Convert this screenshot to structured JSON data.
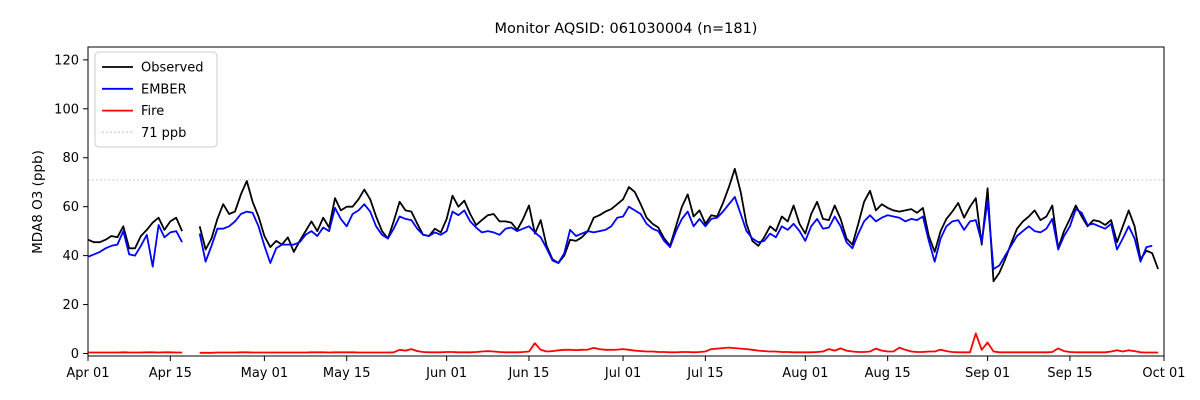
{
  "figure": {
    "title": "Monitor AQSID: 061030004 (n=181)",
    "background_color": "#ffffff"
  },
  "axes": {
    "ylabel": "MDA8 O3 (ppb)",
    "ytick_values": [
      0,
      20,
      40,
      60,
      80,
      100,
      120
    ],
    "xtick_labels": [
      "Apr 01",
      "Apr 15",
      "May 01",
      "May 15",
      "Jun 01",
      "Jun 15",
      "Jul 01",
      "Jul 15",
      "Aug 01",
      "Aug 15",
      "Sep 01",
      "Sep 15",
      "Oct 01"
    ],
    "xtick_day_index": [
      0,
      14,
      30,
      44,
      61,
      75,
      91,
      105,
      122,
      136,
      153,
      167,
      183
    ]
  },
  "legend": {
    "position": "upper left",
    "entries": [
      {
        "label": "Observed",
        "color": "#000000",
        "dash": "solid"
      },
      {
        "label": "EMBER",
        "color": "#0000ff",
        "dash": "solid"
      },
      {
        "label": "Fire",
        "color": "#ff0000",
        "dash": "solid"
      },
      {
        "label": "71 ppb",
        "color": "#c9c9c9",
        "dash": "dotted"
      }
    ]
  },
  "chart_data": {
    "type": "line",
    "title": "Monitor AQSID: 061030004 (n=181)",
    "xlabel": "",
    "ylabel": "MDA8 O3 (ppb)",
    "x_unit": "daily values, day index 0 = Apr 01, last point = Sep 30",
    "n_points": 181,
    "missing_days": [
      "Apr 18",
      "Apr 19"
    ],
    "grid": false,
    "legend_position": "upper left",
    "ylim": [
      0,
      124
    ],
    "xlim_days": 183,
    "ytick_values": [
      0,
      20,
      40,
      60,
      80,
      100,
      120
    ],
    "xtick_labels": [
      "Apr 01",
      "Apr 15",
      "May 01",
      "May 15",
      "Jun 01",
      "Jun 15",
      "Jul 01",
      "Jul 15",
      "Aug 01",
      "Aug 15",
      "Sep 01",
      "Sep 15",
      "Oct 01"
    ],
    "xtick_day_index": [
      0,
      14,
      30,
      44,
      61,
      75,
      91,
      105,
      122,
      136,
      153,
      167,
      183
    ],
    "reference_line": {
      "label": "71 ppb",
      "value": 71,
      "color": "#c9c9c9",
      "style": "dotted"
    },
    "series": [
      {
        "name": "Observed",
        "color": "#000000",
        "values": [
          46.5,
          45.5,
          45.5,
          46.5,
          48,
          47.5,
          52,
          43,
          43,
          48,
          50.5,
          53.5,
          55.5,
          50.5,
          54,
          55.5,
          50,
          null,
          null,
          52,
          42.5,
          47,
          55,
          61,
          57,
          58,
          65,
          70.5,
          62,
          56,
          48,
          43.5,
          46,
          44.5,
          47.5,
          41.5,
          46,
          50,
          54,
          50,
          55.5,
          51.5,
          63.5,
          58.5,
          60,
          60,
          63,
          67,
          63,
          56,
          50,
          47,
          54,
          62,
          58.5,
          58,
          53,
          48.5,
          48,
          51,
          49.5,
          55,
          64.5,
          60,
          62.5,
          57,
          52.5,
          54.5,
          56.5,
          57,
          54,
          54,
          53.5,
          50.5,
          55,
          60.5,
          49,
          54.5,
          44,
          38.5,
          37,
          40,
          46.5,
          46,
          47.5,
          50,
          55.5,
          56.5,
          58,
          59,
          61,
          63,
          68,
          66,
          61,
          55.5,
          53,
          51.5,
          47,
          44,
          52,
          60,
          65,
          56,
          58.5,
          53,
          56.5,
          56,
          61.5,
          68,
          75.5,
          66,
          53,
          46,
          44,
          47.5,
          52,
          50,
          56,
          54,
          60.5,
          53,
          49,
          57,
          62,
          55,
          54.5,
          60.5,
          55,
          47,
          44.5,
          53,
          62,
          66.5,
          58.5,
          61,
          59.5,
          58.5,
          58,
          58.5,
          59,
          57.5,
          59.5,
          48,
          41.5,
          50,
          55,
          58,
          61.5,
          55.5,
          60,
          63.5,
          44.5,
          67.5,
          29.5,
          33,
          38.5,
          45,
          51,
          54,
          56,
          58.5,
          54.5,
          56,
          60.5,
          43,
          50,
          55,
          60.5,
          56,
          52,
          54.5,
          54,
          52.5,
          54.5,
          45.5,
          52,
          58.5,
          52,
          38.5,
          42,
          41,
          34.5
        ]
      },
      {
        "name": "EMBER",
        "color": "#0000ff",
        "values": [
          39.5,
          40.5,
          41.5,
          43,
          44,
          44.5,
          50,
          40.5,
          40,
          44,
          48.5,
          35.5,
          52.5,
          47.5,
          49.5,
          50,
          45.5,
          null,
          null,
          49,
          37.5,
          44,
          51,
          51,
          52,
          54,
          57,
          58,
          57.5,
          52,
          44,
          37,
          43,
          44.5,
          44.5,
          44.5,
          45.5,
          48.5,
          50,
          48,
          51.5,
          50,
          59.5,
          55,
          52,
          57,
          58.5,
          61,
          58,
          52,
          48.5,
          47,
          51,
          56,
          55,
          54.5,
          51,
          48.5,
          48,
          49.5,
          48.5,
          50,
          58,
          56.5,
          58.5,
          54,
          51.5,
          49.5,
          50,
          49.5,
          48.5,
          51,
          51.5,
          50,
          51,
          52,
          49.5,
          47.5,
          43,
          38,
          37,
          41,
          50.5,
          48,
          49,
          50,
          49.5,
          50,
          50.5,
          52,
          55.5,
          56,
          60,
          58.5,
          57,
          53,
          51,
          50,
          46,
          43.5,
          50,
          55,
          58,
          52,
          55,
          52,
          55,
          55.5,
          58,
          61,
          64,
          57,
          50,
          47,
          45.5,
          46,
          49,
          47.5,
          52,
          50.5,
          53,
          50,
          46,
          52,
          55,
          51,
          51.5,
          56,
          52,
          45.5,
          43,
          49,
          54,
          56.5,
          54,
          55.5,
          56.5,
          56,
          55.5,
          54,
          55,
          54.5,
          56,
          46,
          37.5,
          47,
          52,
          54,
          54.5,
          50.5,
          54,
          54.5,
          45.5,
          62.5,
          34.5,
          36,
          40,
          44,
          48,
          50,
          52,
          50,
          49.5,
          51,
          55,
          42.5,
          48,
          52,
          59,
          57.5,
          52.5,
          53,
          52,
          51,
          53,
          42.5,
          47,
          52,
          47,
          37.5,
          43.5,
          44,
          null
        ]
      },
      {
        "name": "Fire",
        "color": "#ff0000",
        "values": [
          0.4,
          0.4,
          0.4,
          0.4,
          0.4,
          0.4,
          0.5,
          0.4,
          0.4,
          0.4,
          0.5,
          0.5,
          0.4,
          0.5,
          0.5,
          0.4,
          0.4,
          null,
          null,
          0.3,
          0.3,
          0.3,
          0.4,
          0.4,
          0.4,
          0.4,
          0.5,
          0.5,
          0.4,
          0.4,
          0.4,
          0.4,
          0.4,
          0.4,
          0.4,
          0.4,
          0.4,
          0.4,
          0.5,
          0.5,
          0.5,
          0.4,
          0.5,
          0.5,
          0.5,
          0.5,
          0.4,
          0.4,
          0.4,
          0.4,
          0.4,
          0.4,
          0.5,
          1.5,
          1.2,
          1.8,
          1.0,
          0.6,
          0.5,
          0.5,
          0.5,
          0.6,
          0.6,
          0.5,
          0.5,
          0.5,
          0.6,
          0.8,
          1.0,
          0.8,
          0.6,
          0.5,
          0.5,
          0.5,
          0.6,
          0.8,
          4.2,
          1.5,
          0.8,
          1.0,
          1.3,
          1.5,
          1.5,
          1.4,
          1.5,
          1.6,
          2.3,
          1.8,
          1.5,
          1.5,
          1.6,
          1.8,
          1.5,
          1.2,
          1.0,
          0.8,
          0.8,
          0.6,
          0.6,
          0.5,
          0.5,
          0.6,
          0.6,
          0.5,
          0.6,
          0.8,
          1.8,
          2.0,
          2.2,
          2.4,
          2.2,
          2.0,
          1.8,
          1.5,
          1.2,
          1.0,
          0.8,
          0.8,
          0.6,
          0.6,
          0.5,
          0.5,
          0.5,
          0.5,
          0.6,
          0.8,
          1.8,
          1.2,
          2.1,
          1.2,
          0.8,
          0.6,
          0.6,
          0.8,
          2.0,
          1.2,
          0.8,
          0.8,
          2.4,
          1.5,
          0.8,
          0.6,
          0.6,
          0.8,
          0.8,
          1.6,
          1.0,
          0.6,
          0.5,
          0.5,
          0.5,
          8.2,
          1.5,
          4.5,
          0.8,
          0.5,
          0.5,
          0.5,
          0.5,
          0.5,
          0.5,
          0.5,
          0.5,
          0.5,
          0.6,
          2.1,
          1.0,
          0.6,
          0.5,
          0.5,
          0.5,
          0.5,
          0.5,
          0.5,
          0.8,
          1.3,
          0.8,
          1.3,
          1.0,
          0.5,
          0.4,
          0.4,
          0.4
        ]
      }
    ]
  }
}
